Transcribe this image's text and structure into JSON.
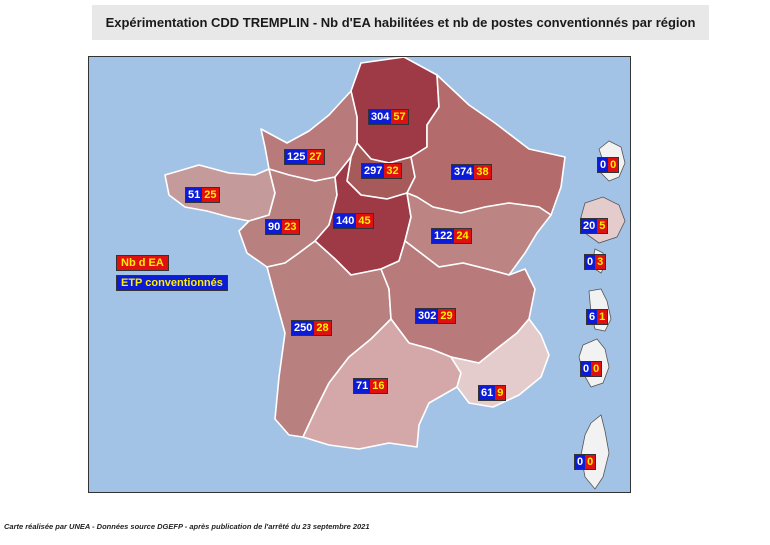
{
  "title": "Expérimentation CDD TREMPLIN - Nb d'EA habilitées et nb de postes conventionnés par région",
  "legend": {
    "ea_label": "Nb d EA",
    "etp_label": "ETP conventionnés",
    "ea_color": "#e01010",
    "etp_color": "#0b1bd6"
  },
  "source": "Carte réalisée par UNEA - Données source DGEFP - après publication de l'arrêté du 23 septembre 2021",
  "regions": [
    {
      "id": "hauts-de-france",
      "etp": "304",
      "ea": "57",
      "fill": "#9e3a46"
    },
    {
      "id": "normandie",
      "etp": "125",
      "ea": "27",
      "fill": "#b87a7a"
    },
    {
      "id": "ile-de-france",
      "etp": "297",
      "ea": "32",
      "fill": "#a65a5a"
    },
    {
      "id": "grand-est",
      "etp": "374",
      "ea": "38",
      "fill": "#b36b6b"
    },
    {
      "id": "bretagne",
      "etp": "51",
      "ea": "25",
      "fill": "#c59a9a"
    },
    {
      "id": "pays-de-la-loire",
      "etp": "90",
      "ea": "23",
      "fill": "#b98080"
    },
    {
      "id": "centre-val-de-loire",
      "etp": "140",
      "ea": "45",
      "fill": "#9e3a46"
    },
    {
      "id": "bourgogne-franche-comte",
      "etp": "122",
      "ea": "24",
      "fill": "#bd8484"
    },
    {
      "id": "nouvelle-aquitaine",
      "etp": "250",
      "ea": "28",
      "fill": "#b98080"
    },
    {
      "id": "auvergne-rhone-alpes",
      "etp": "302",
      "ea": "29",
      "fill": "#b87a7a"
    },
    {
      "id": "occitanie",
      "etp": "71",
      "ea": "16",
      "fill": "#d4a8a8"
    },
    {
      "id": "provence-alpes-cote-azur",
      "etp": "61",
      "ea": "9",
      "fill": "#e4cccc"
    }
  ],
  "overseas": [
    {
      "id": "guadeloupe",
      "etp": "0",
      "ea": "0",
      "fill": "#f2f2f2"
    },
    {
      "id": "la-reunion",
      "etp": "20",
      "ea": "5",
      "fill": "#e4cccc"
    },
    {
      "id": "mayotte",
      "etp": "0",
      "ea": "3",
      "fill": "#f2f2f2"
    },
    {
      "id": "martinique",
      "etp": "6",
      "ea": "1",
      "fill": "#f2f2f2"
    },
    {
      "id": "guyane",
      "etp": "0",
      "ea": "0",
      "fill": "#f2f2f2"
    },
    {
      "id": "corse",
      "etp": "0",
      "ea": "0",
      "fill": "#f2f2f2"
    }
  ]
}
